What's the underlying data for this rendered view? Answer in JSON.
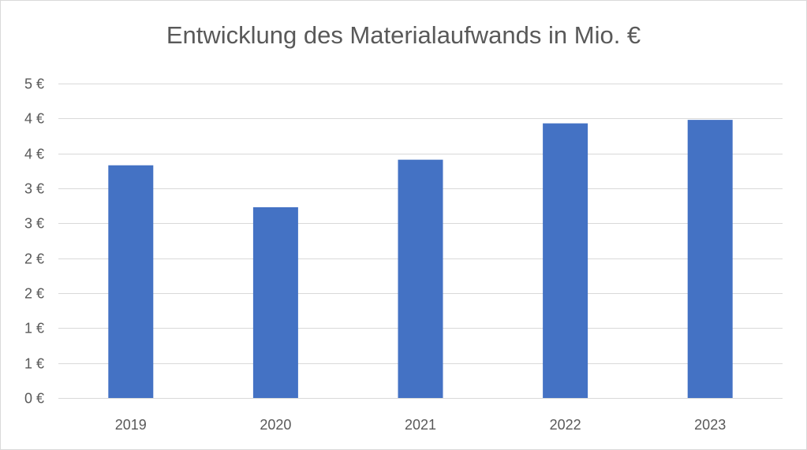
{
  "chart_data": {
    "type": "bar",
    "title": "Entwicklung des Materialaufwands in Mio. €",
    "categories": [
      "2019",
      "2020",
      "2021",
      "2022",
      "2023"
    ],
    "values": [
      3.33,
      2.73,
      3.41,
      3.93,
      3.98
    ],
    "ylim": [
      0,
      4.5
    ],
    "yticks": [
      0,
      0.5,
      1,
      1.5,
      2,
      2.5,
      3,
      3.5,
      4,
      4.5
    ],
    "ytick_labels": [
      "0 €",
      "1 €",
      "1 €",
      "2 €",
      "2 €",
      "3 €",
      "3 €",
      "4 €",
      "4 €",
      "5 €"
    ],
    "grid": true,
    "legend": "none",
    "bar_color": "#4472c4",
    "gridline_color": "#d9d9d9",
    "text_color": "#595959"
  }
}
